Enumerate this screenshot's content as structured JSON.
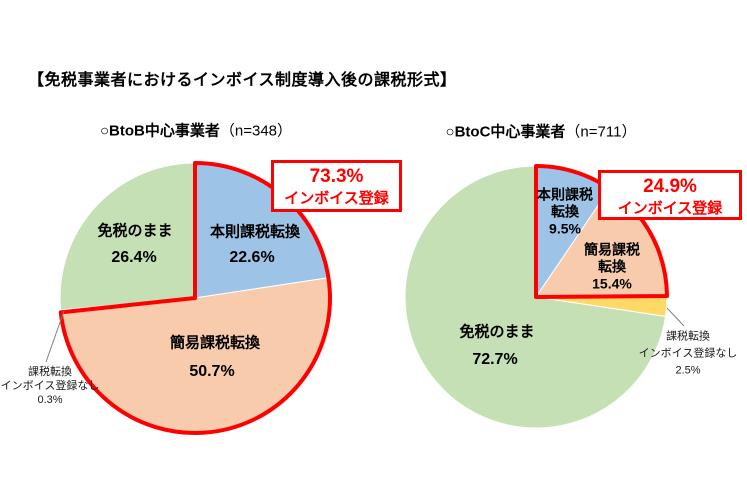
{
  "main_title": "【免税事業者におけるインボイス制度導入後の課税形式】",
  "palette": {
    "standard_tax_blue": "#9dc3e6",
    "simplified_tax_orange": "#f8cbad",
    "no_registration_yellow": "#ffd966",
    "exempt_green": "#c5e0b4",
    "highlight_red": "#ff0000"
  },
  "chart_data": [
    {
      "type": "pie",
      "title": "○BtoB中心事業者",
      "n_label": "（n=348）",
      "start_angle_deg": 0,
      "direction": "clockwise",
      "slices": [
        {
          "label": "本則課税転換",
          "value": 22.6,
          "display": "22.6%",
          "color": "#9dc3e6"
        },
        {
          "label": "簡易課税転換",
          "value": 50.7,
          "display": "50.7%",
          "color": "#f8cbad"
        },
        {
          "label": "課税転換 インボイス登録なし",
          "label_lines": [
            "課税転換",
            "インボイス登録なし"
          ],
          "value": 0.3,
          "display": "0.3%",
          "color": "#ffd966"
        },
        {
          "label": "免税のまま",
          "value": 26.4,
          "display": "26.4%",
          "color": "#c5e0b4"
        }
      ],
      "highlight": {
        "display": "73.3%",
        "label": "インボイス登録",
        "slice_indices": [
          0,
          1
        ],
        "color": "#ff0000"
      }
    },
    {
      "type": "pie",
      "title": "○BtoC中心事業者",
      "n_label": "（n=711）",
      "start_angle_deg": 0,
      "direction": "clockwise",
      "slices": [
        {
          "label": "本則課税転換",
          "label_lines": [
            "本則課税",
            "転換"
          ],
          "value": 9.5,
          "display": "9.5%",
          "color": "#9dc3e6"
        },
        {
          "label": "簡易課税転換",
          "label_lines": [
            "簡易課税",
            "転換"
          ],
          "value": 15.4,
          "display": "15.4%",
          "color": "#f8cbad"
        },
        {
          "label": "課税転換 インボイス登録なし",
          "label_lines": [
            "課税転換",
            "インボイス登録なし"
          ],
          "value": 2.5,
          "display": "2.5%",
          "color": "#ffd966"
        },
        {
          "label": "免税のまま",
          "value": 72.7,
          "display": "72.7%",
          "color": "#c5e0b4"
        }
      ],
      "highlight": {
        "display": "24.9%",
        "label": "インボイス登録",
        "slice_indices": [
          0,
          1
        ],
        "color": "#ff0000"
      }
    }
  ]
}
